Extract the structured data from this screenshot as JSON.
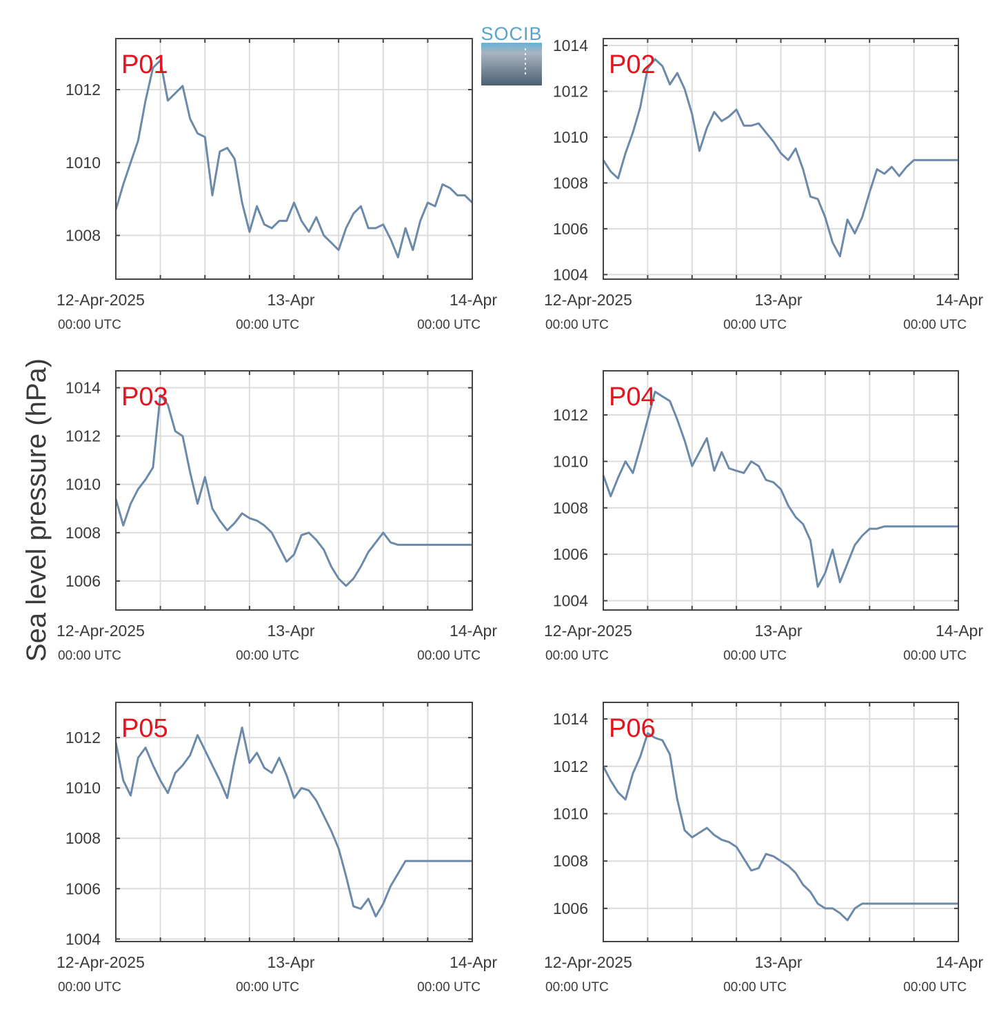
{
  "logo": {
    "text": "SOCIB"
  },
  "y_axis_label": "Sea level pressure (hPa)",
  "x_tick_labels": [
    {
      "date": "12-Apr-2025",
      "time": "00:00 UTC"
    },
    {
      "date": "13-Apr",
      "time": "00:00 UTC"
    },
    {
      "date": "14-Apr",
      "time": "00:00 UTC"
    }
  ],
  "colors": {
    "line": "#6b8aaa",
    "panel_label": "#e5131d",
    "grid": "#dcdcdc",
    "axes": "#444444"
  },
  "chart_data": [
    {
      "type": "line",
      "title": "P01",
      "x_unit": "hours since 12-Apr-2025 00:00 UTC",
      "xlim": [
        -12,
        36
      ],
      "ylim": [
        1006.8,
        1013.4
      ],
      "yticks": [
        1008,
        1010,
        1012
      ],
      "x": [
        -12,
        -11,
        -10,
        -9,
        -8,
        -7,
        -6,
        -5,
        -4,
        -3,
        -2,
        -1,
        0,
        1,
        2,
        3,
        4,
        5,
        6,
        7,
        8,
        9,
        10,
        11,
        12,
        13,
        14,
        15,
        16,
        17,
        18,
        19,
        20,
        21,
        22,
        23,
        24,
        25,
        26,
        27,
        28,
        29,
        30,
        31,
        32,
        33,
        34,
        35,
        36
      ],
      "y": [
        1008.7,
        1009.4,
        1010.0,
        1010.6,
        1011.7,
        1012.6,
        1012.8,
        1011.7,
        1011.9,
        1012.1,
        1011.2,
        1010.8,
        1010.7,
        1009.1,
        1010.3,
        1010.4,
        1010.1,
        1008.9,
        1008.1,
        1008.8,
        1008.3,
        1008.2,
        1008.4,
        1008.4,
        1008.9,
        1008.4,
        1008.1,
        1008.5,
        1008.0,
        1007.8,
        1007.6,
        1008.2,
        1008.6,
        1008.8,
        1008.2,
        1008.2,
        1008.3,
        1007.9,
        1007.4,
        1008.2,
        1007.6,
        1008.4,
        1008.9,
        1008.8,
        1009.4,
        1009.3,
        1009.1,
        1009.1,
        1008.9
      ]
    },
    {
      "type": "line",
      "title": "P02",
      "x_unit": "hours since 12-Apr-2025 00:00 UTC",
      "xlim": [
        -12,
        36
      ],
      "ylim": [
        1003.8,
        1014.3
      ],
      "yticks": [
        1004,
        1006,
        1008,
        1010,
        1012,
        1014
      ],
      "x": [
        -12,
        -11,
        -10,
        -9,
        -8,
        -7,
        -6,
        -5,
        -4,
        -3,
        -2,
        -1,
        0,
        1,
        2,
        3,
        4,
        5,
        6,
        7,
        8,
        9,
        10,
        11,
        12,
        13,
        14,
        15,
        16,
        17,
        18,
        19,
        20,
        21,
        22,
        23,
        24,
        25,
        26,
        27,
        28,
        29,
        30,
        31,
        32,
        33,
        34,
        35,
        36
      ],
      "y": [
        1009.0,
        1008.5,
        1008.2,
        1009.3,
        1010.2,
        1011.3,
        1013.0,
        1013.4,
        1013.1,
        1012.3,
        1012.8,
        1012.1,
        1011.0,
        1009.4,
        1010.4,
        1011.1,
        1010.7,
        1010.9,
        1011.2,
        1010.5,
        1010.5,
        1010.6,
        1010.2,
        1009.8,
        1009.3,
        1009.0,
        1009.5,
        1008.6,
        1007.4,
        1007.3,
        1006.5,
        1005.4,
        1004.8,
        1006.4,
        1005.8,
        1006.5,
        1007.6,
        1008.6,
        1008.4,
        1008.7,
        1008.3,
        1008.7,
        1009.0,
        1009.0,
        1009.0,
        1009.0,
        1009.0,
        1009.0,
        1009.0
      ]
    },
    {
      "type": "line",
      "title": "P03",
      "x_unit": "hours since 12-Apr-2025 00:00 UTC",
      "xlim": [
        -12,
        36
      ],
      "ylim": [
        1004.8,
        1014.7
      ],
      "yticks": [
        1006,
        1008,
        1010,
        1012,
        1014
      ],
      "x": [
        -12,
        -11,
        -10,
        -9,
        -8,
        -7,
        -6,
        -5,
        -4,
        -3,
        -2,
        -1,
        0,
        1,
        2,
        3,
        4,
        5,
        6,
        7,
        8,
        9,
        10,
        11,
        12,
        13,
        14,
        15,
        16,
        17,
        18,
        19,
        20,
        21,
        22,
        23,
        24,
        25,
        26,
        27,
        28,
        29,
        30,
        31,
        32,
        33,
        34,
        35,
        36
      ],
      "y": [
        1009.4,
        1008.3,
        1009.2,
        1009.8,
        1010.2,
        1010.7,
        1013.7,
        1013.3,
        1012.2,
        1012.0,
        1010.5,
        1009.2,
        1010.3,
        1009.0,
        1008.5,
        1008.1,
        1008.4,
        1008.8,
        1008.6,
        1008.5,
        1008.3,
        1008.0,
        1007.4,
        1006.8,
        1007.1,
        1007.9,
        1008.0,
        1007.7,
        1007.3,
        1006.6,
        1006.1,
        1005.8,
        1006.1,
        1006.6,
        1007.2,
        1007.6,
        1008.0,
        1007.6,
        1007.5,
        1007.5,
        1007.5,
        1007.5,
        1007.5,
        1007.5,
        1007.5,
        1007.5,
        1007.5,
        1007.5,
        1007.5
      ]
    },
    {
      "type": "line",
      "title": "P04",
      "x_unit": "hours since 12-Apr-2025 00:00 UTC",
      "xlim": [
        -12,
        36
      ],
      "ylim": [
        1003.6,
        1013.9
      ],
      "yticks": [
        1004,
        1006,
        1008,
        1010,
        1012
      ],
      "x": [
        -12,
        -11,
        -10,
        -9,
        -8,
        -7,
        -6,
        -5,
        -4,
        -3,
        -2,
        -1,
        0,
        1,
        2,
        3,
        4,
        5,
        6,
        7,
        8,
        9,
        10,
        11,
        12,
        13,
        14,
        15,
        16,
        17,
        18,
        19,
        20,
        21,
        22,
        23,
        24,
        25,
        26,
        27,
        28,
        29,
        30,
        31,
        32,
        33,
        34,
        35,
        36
      ],
      "y": [
        1009.4,
        1008.5,
        1009.3,
        1010.0,
        1009.5,
        1010.6,
        1011.8,
        1013.0,
        1012.8,
        1012.6,
        1011.8,
        1010.9,
        1009.8,
        1010.4,
        1011.0,
        1009.6,
        1010.4,
        1009.7,
        1009.6,
        1009.5,
        1010.0,
        1009.8,
        1009.2,
        1009.1,
        1008.8,
        1008.1,
        1007.6,
        1007.3,
        1006.6,
        1004.6,
        1005.2,
        1006.2,
        1004.8,
        1005.6,
        1006.4,
        1006.8,
        1007.1,
        1007.1,
        1007.2,
        1007.2,
        1007.2,
        1007.2,
        1007.2,
        1007.2,
        1007.2,
        1007.2,
        1007.2,
        1007.2,
        1007.2
      ]
    },
    {
      "type": "line",
      "title": "P05",
      "x_unit": "hours since 12-Apr-2025 00:00 UTC",
      "xlim": [
        -12,
        36
      ],
      "ylim": [
        1003.9,
        1013.4
      ],
      "yticks": [
        1004,
        1006,
        1008,
        1010,
        1012
      ],
      "x": [
        -12,
        -11,
        -10,
        -9,
        -8,
        -7,
        -6,
        -5,
        -4,
        -3,
        -2,
        -1,
        0,
        1,
        2,
        3,
        4,
        5,
        6,
        7,
        8,
        9,
        10,
        11,
        12,
        13,
        14,
        15,
        16,
        17,
        18,
        19,
        20,
        21,
        22,
        23,
        24,
        25,
        26,
        27,
        28,
        29,
        30,
        31,
        32,
        33,
        34,
        35,
        36
      ],
      "y": [
        1011.8,
        1010.3,
        1009.7,
        1011.2,
        1011.6,
        1010.9,
        1010.3,
        1009.8,
        1010.6,
        1010.9,
        1011.3,
        1012.1,
        1011.5,
        1010.9,
        1010.3,
        1009.6,
        1011.1,
        1012.4,
        1011.0,
        1011.4,
        1010.8,
        1010.6,
        1011.2,
        1010.5,
        1009.6,
        1010.0,
        1009.9,
        1009.5,
        1008.9,
        1008.3,
        1007.6,
        1006.5,
        1005.3,
        1005.2,
        1005.6,
        1004.9,
        1005.4,
        1006.1,
        1006.6,
        1007.1,
        1007.1,
        1007.1,
        1007.1,
        1007.1,
        1007.1,
        1007.1,
        1007.1,
        1007.1,
        1007.1
      ]
    },
    {
      "type": "line",
      "title": "P06",
      "x_unit": "hours since 12-Apr-2025 00:00 UTC",
      "xlim": [
        -12,
        36
      ],
      "ylim": [
        1004.6,
        1014.7
      ],
      "yticks": [
        1006,
        1008,
        1010,
        1012,
        1014
      ],
      "x": [
        -12,
        -11,
        -10,
        -9,
        -8,
        -7,
        -6,
        -5,
        -4,
        -3,
        -2,
        -1,
        0,
        1,
        2,
        3,
        4,
        5,
        6,
        7,
        8,
        9,
        10,
        11,
        12,
        13,
        14,
        15,
        16,
        17,
        18,
        19,
        20,
        21,
        22,
        23,
        24,
        25,
        26,
        27,
        28,
        29,
        30,
        31,
        32,
        33,
        34,
        35,
        36
      ],
      "y": [
        1012.0,
        1011.4,
        1010.9,
        1010.6,
        1011.7,
        1012.4,
        1013.4,
        1013.2,
        1013.1,
        1012.5,
        1010.6,
        1009.3,
        1009.0,
        1009.2,
        1009.4,
        1009.1,
        1008.9,
        1008.8,
        1008.6,
        1008.1,
        1007.6,
        1007.7,
        1008.3,
        1008.2,
        1008.0,
        1007.8,
        1007.5,
        1007.0,
        1006.7,
        1006.2,
        1006.0,
        1006.0,
        1005.8,
        1005.5,
        1006.0,
        1006.2,
        1006.2,
        1006.2,
        1006.2,
        1006.2,
        1006.2,
        1006.2,
        1006.2,
        1006.2,
        1006.2,
        1006.2,
        1006.2,
        1006.2,
        1006.2
      ]
    }
  ]
}
